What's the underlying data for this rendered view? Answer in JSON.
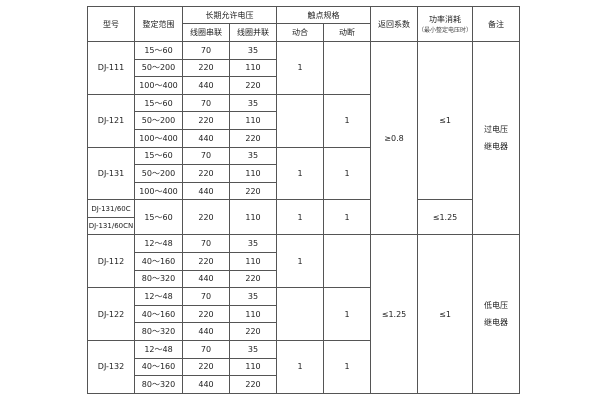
{
  "headers": {
    "model": "型号",
    "range": "整定范围",
    "voltage": "长期允许电压",
    "series": "线圈串联",
    "parallel": "线圈并联",
    "contact": "触点规格",
    "make": "动合",
    "break": "动断",
    "return": "返回系数",
    "power": "功率消耗",
    "power_sub": "（最小整定电压时）",
    "remark": "备注"
  },
  "groups": [
    {
      "model": "DJ-111",
      "rows": [
        [
          "15～60",
          "70",
          "35"
        ],
        [
          "50～200",
          "220",
          "110"
        ],
        [
          "100～400",
          "440",
          "220"
        ]
      ],
      "make": "1",
      "break": ""
    },
    {
      "model": "DJ-121",
      "rows": [
        [
          "15～60",
          "70",
          "35"
        ],
        [
          "50～200",
          "220",
          "110"
        ],
        [
          "100～400",
          "440",
          "220"
        ]
      ],
      "make": "",
      "break": "1"
    },
    {
      "model": "DJ-131",
      "rows": [
        [
          "15～60",
          "70",
          "35"
        ],
        [
          "50～200",
          "220",
          "110"
        ],
        [
          "100～400",
          "440",
          "220"
        ]
      ],
      "make": "1",
      "break": "1"
    },
    {
      "model_a": "DJ-131/60C",
      "model_b": "DJ-131/60CN",
      "range": "15～60",
      "series": "220",
      "parallel": "110",
      "make": "1",
      "break": "1"
    },
    {
      "model": "DJ-112",
      "rows": [
        [
          "12～48",
          "70",
          "35"
        ],
        [
          "40～160",
          "220",
          "110"
        ],
        [
          "80～320",
          "440",
          "220"
        ]
      ],
      "make": "1",
      "break": ""
    },
    {
      "model": "DJ-122",
      "rows": [
        [
          "12～48",
          "70",
          "35"
        ],
        [
          "40～160",
          "220",
          "110"
        ],
        [
          "80～320",
          "440",
          "220"
        ]
      ],
      "make": "",
      "break": "1"
    },
    {
      "model": "DJ-132",
      "rows": [
        [
          "12～48",
          "70",
          "35"
        ],
        [
          "40～160",
          "220",
          "110"
        ],
        [
          "80～320",
          "440",
          "220"
        ]
      ],
      "make": "1",
      "break": "1"
    }
  ],
  "return_over": "≥0.8",
  "return_under": "≤1.25",
  "power_a": "≤1",
  "power_b": "≤1.25",
  "power_c": "≤1",
  "remark_over": [
    "过电压",
    "继电器"
  ],
  "remark_under": [
    "低电压",
    "继电器"
  ]
}
